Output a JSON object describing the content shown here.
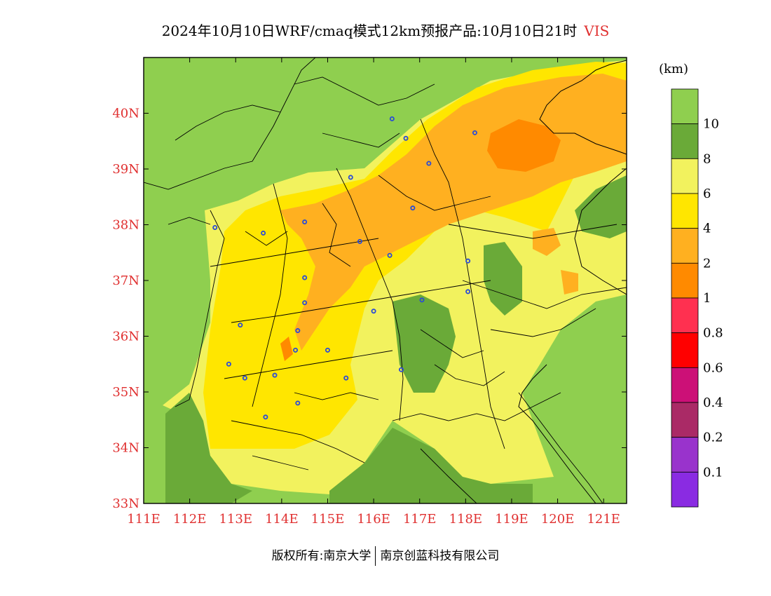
{
  "title": {
    "main": "2024年10月10日WRF/cmaq模式12km预报产品:10月10日21时",
    "variable": "VIS"
  },
  "credit": {
    "left": "版权所有:南京大学",
    "right": "南京创蓝科技有限公司"
  },
  "colors": {
    "axis_label": "#e03030",
    "station": "#2a4bd7",
    "border": "#000000"
  },
  "map": {
    "lon_range": [
      111,
      121.5
    ],
    "lat_range": [
      33,
      41
    ],
    "lon_ticks": [
      "111E",
      "112E",
      "113E",
      "114E",
      "115E",
      "116E",
      "117E",
      "118E",
      "119E",
      "120E",
      "121E"
    ],
    "lat_ticks": [
      "34N",
      "35N",
      "36N",
      "37N",
      "38N",
      "39N",
      "40N"
    ],
    "lat_ticks_all": [
      "33N",
      "34N",
      "35N",
      "36N",
      "37N",
      "38N",
      "39N",
      "40N"
    ]
  },
  "legend": {
    "unit": "(km)",
    "levels": [
      "10",
      "8",
      "6",
      "4",
      "2",
      "1",
      "0.8",
      "0.6",
      "0.4",
      "0.2",
      "0.1"
    ],
    "colors": [
      "#8fcf4f",
      "#6aaa38",
      "#f2f25e",
      "#ffe600",
      "#ffb020",
      "#ff8a00",
      "#ff3050",
      "#ff0000",
      "#cc1077",
      "#aa2a66",
      "#9933cc",
      "#8a2be2"
    ]
  },
  "stations": [
    {
      "lon": 116.4,
      "lat": 39.9
    },
    {
      "lon": 116.7,
      "lat": 39.55
    },
    {
      "lon": 117.2,
      "lat": 39.1
    },
    {
      "lon": 118.2,
      "lat": 39.65
    },
    {
      "lon": 115.5,
      "lat": 38.85
    },
    {
      "lon": 116.85,
      "lat": 38.3
    },
    {
      "lon": 114.5,
      "lat": 38.05
    },
    {
      "lon": 112.55,
      "lat": 37.95
    },
    {
      "lon": 113.6,
      "lat": 37.85
    },
    {
      "lon": 115.7,
      "lat": 37.7
    },
    {
      "lon": 116.35,
      "lat": 37.45
    },
    {
      "lon": 118.05,
      "lat": 37.35
    },
    {
      "lon": 114.5,
      "lat": 37.05
    },
    {
      "lon": 118.05,
      "lat": 36.8
    },
    {
      "lon": 114.5,
      "lat": 36.6
    },
    {
      "lon": 117.05,
      "lat": 36.65
    },
    {
      "lon": 116.0,
      "lat": 36.45
    },
    {
      "lon": 113.1,
      "lat": 36.2
    },
    {
      "lon": 114.35,
      "lat": 36.1
    },
    {
      "lon": 114.3,
      "lat": 35.75
    },
    {
      "lon": 115.0,
      "lat": 35.75
    },
    {
      "lon": 112.85,
      "lat": 35.5
    },
    {
      "lon": 116.6,
      "lat": 35.4
    },
    {
      "lon": 113.2,
      "lat": 35.25
    },
    {
      "lon": 113.85,
      "lat": 35.3
    },
    {
      "lon": 115.4,
      "lat": 35.25
    },
    {
      "lon": 114.35,
      "lat": 34.8
    },
    {
      "lon": 113.65,
      "lat": 34.55
    }
  ]
}
